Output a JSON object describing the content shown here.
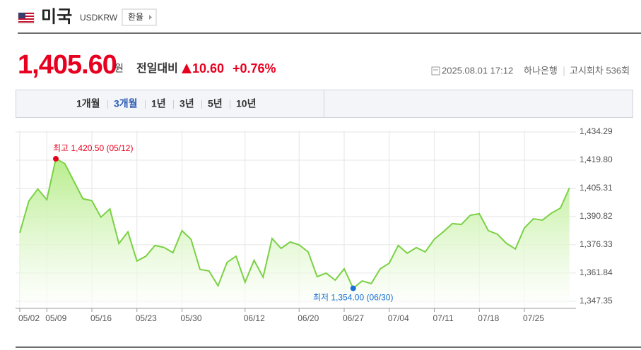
{
  "header": {
    "country": "미국",
    "code": "USDKRW",
    "button": "환율"
  },
  "quote": {
    "price": "1,405.60",
    "unit": "원",
    "change_label": "전일대비",
    "change": "10.60",
    "change_percent": "+0.76%",
    "datetime": "2025.08.01 17:12",
    "bank": "하나은행",
    "round": "고시회차 536회"
  },
  "tabs": {
    "items": [
      "1개월",
      "3개월",
      "1년",
      "3년",
      "5년",
      "10년"
    ],
    "selected": 1
  },
  "chart_data": {
    "type": "line",
    "color": "#7ad144",
    "fill_color": "#b4ec86",
    "grid": true,
    "categories": [
      "05/02",
      null,
      null,
      "05/09",
      null,
      null,
      null,
      null,
      "05/16",
      null,
      null,
      null,
      null,
      "05/23",
      null,
      null,
      null,
      null,
      "05/30",
      null,
      null,
      null,
      null,
      null,
      null,
      "06/12",
      null,
      null,
      null,
      null,
      null,
      "06/20",
      null,
      null,
      null,
      null,
      "06/27",
      null,
      null,
      null,
      null,
      "07/04",
      null,
      null,
      null,
      null,
      "07/11",
      null,
      null,
      null,
      null,
      "07/18",
      null,
      null,
      null,
      null,
      "07/25",
      null,
      null,
      null,
      null,
      null
    ],
    "values": [
      1382.5,
      1398.8,
      1405.0,
      1399.5,
      1420.5,
      1418.0,
      1409.0,
      1400.0,
      1399.0,
      1390.5,
      1394.8,
      1377.0,
      1383.0,
      1368.0,
      1370.5,
      1376.0,
      1375.0,
      1372.3,
      1383.6,
      1379.2,
      1363.7,
      1362.9,
      1355.3,
      1367.3,
      1370.5,
      1357.1,
      1368.4,
      1359.7,
      1379.6,
      1374.5,
      1377.8,
      1376.3,
      1372.7,
      1360.0,
      1361.8,
      1358.2,
      1364.0,
      1354.0,
      1357.8,
      1356.4,
      1364.0,
      1366.9,
      1376.0,
      1372.0,
      1374.9,
      1372.7,
      1379.2,
      1383.0,
      1387.2,
      1386.8,
      1391.5,
      1392.3,
      1383.6,
      1381.8,
      1377.1,
      1374.2,
      1385.0,
      1389.7,
      1389.0,
      1392.6,
      1395.2,
      1405.6
    ],
    "ylim": [
      1343.7,
      1435.0
    ],
    "yticks": [
      {
        "value": 1347.35,
        "label": "1,347.35"
      },
      {
        "value": 1361.84,
        "label": "1,361.84"
      },
      {
        "value": 1376.33,
        "label": "1,376.33"
      },
      {
        "value": 1390.82,
        "label": "1,390.82"
      },
      {
        "value": 1405.31,
        "label": "1,405.31"
      },
      {
        "value": 1419.8,
        "label": "1,419.80"
      },
      {
        "value": 1434.29,
        "label": "1,434.29"
      }
    ],
    "annotations": {
      "high": "최고 1,420.50 (05/12)",
      "low": "최저 1,354.00 (06/30)"
    },
    "high_color": "#e8001f",
    "low_color": "#1a6fd6"
  }
}
